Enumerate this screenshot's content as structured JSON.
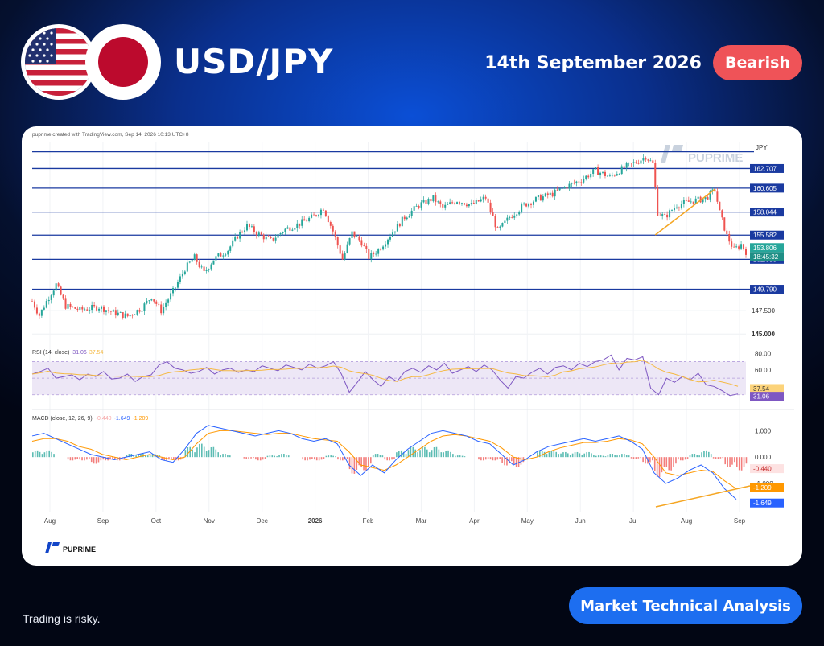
{
  "header": {
    "pair": "USD/JPY",
    "date": "14th September 2026",
    "sentiment": "Bearish",
    "flags": [
      "us-flag",
      "japan-flag"
    ]
  },
  "chart_header": "puprime created with TradingView.com, Sep 14, 2026 10:13 UTC+8",
  "watermark": "PUPRIME",
  "card_logo": "PUPRIME",
  "footer": {
    "disclaimer": "Trading is risky.",
    "cta": "Market Technical Analysis"
  },
  "colors": {
    "bearish": "#ef5358",
    "up_candle": "#26a69a",
    "down_candle": "#ef5350",
    "level_line": "#1a3aa0",
    "rsi": "#7e57c2",
    "rsi_ma": "#f5b942",
    "macd": "#2962ff",
    "signal": "#ff9800",
    "trendline": "#f5a623"
  },
  "chart_data": [
    {
      "type": "candlestick",
      "title": "USD/JPY",
      "currency": "JPY",
      "x_labels": [
        "Aug",
        "Sep",
        "Oct",
        "Nov",
        "Dec",
        "2026",
        "Feb",
        "Mar",
        "Apr",
        "May",
        "Jun",
        "Jul",
        "Aug",
        "Sep"
      ],
      "ylim": [
        144.5,
        165.5
      ],
      "y_ticks": [
        145.0,
        147.5
      ],
      "horizontal_levels": [
        164.5,
        162.707,
        160.605,
        158.044,
        155.582,
        152.99,
        149.79
      ],
      "level_labels": [
        "162.707",
        "160.605",
        "158.044",
        "155.582",
        "152.990",
        "149.790"
      ],
      "last_price": "153.806",
      "countdown": "18:45:32",
      "price_path": [
        {
          "x": 0,
          "y": 148.5
        },
        {
          "x": 3,
          "y": 147.0
        },
        {
          "x": 6,
          "y": 148.5
        },
        {
          "x": 10,
          "y": 150.3
        },
        {
          "x": 14,
          "y": 148.0
        },
        {
          "x": 20,
          "y": 147.6
        },
        {
          "x": 28,
          "y": 147.9
        },
        {
          "x": 34,
          "y": 147.3
        },
        {
          "x": 40,
          "y": 146.9
        },
        {
          "x": 46,
          "y": 147.8
        },
        {
          "x": 50,
          "y": 149.0
        },
        {
          "x": 54,
          "y": 147.5
        },
        {
          "x": 60,
          "y": 150.0
        },
        {
          "x": 64,
          "y": 152.0
        },
        {
          "x": 68,
          "y": 153.2
        },
        {
          "x": 72,
          "y": 151.5
        },
        {
          "x": 76,
          "y": 153.0
        },
        {
          "x": 82,
          "y": 154.0
        },
        {
          "x": 86,
          "y": 155.5
        },
        {
          "x": 90,
          "y": 156.6
        },
        {
          "x": 94,
          "y": 155.8
        },
        {
          "x": 100,
          "y": 155.0
        },
        {
          "x": 106,
          "y": 156.2
        },
        {
          "x": 112,
          "y": 156.8
        },
        {
          "x": 118,
          "y": 157.6
        },
        {
          "x": 122,
          "y": 158.5
        },
        {
          "x": 126,
          "y": 156.0
        },
        {
          "x": 130,
          "y": 153.0
        },
        {
          "x": 134,
          "y": 155.8
        },
        {
          "x": 138,
          "y": 154.8
        },
        {
          "x": 141,
          "y": 153.2
        },
        {
          "x": 145,
          "y": 154.0
        },
        {
          "x": 150,
          "y": 155.6
        },
        {
          "x": 156,
          "y": 157.5
        },
        {
          "x": 162,
          "y": 158.8
        },
        {
          "x": 168,
          "y": 159.5
        },
        {
          "x": 172,
          "y": 158.5
        },
        {
          "x": 178,
          "y": 159.3
        },
        {
          "x": 184,
          "y": 158.8
        },
        {
          "x": 190,
          "y": 159.6
        },
        {
          "x": 195,
          "y": 156.0
        },
        {
          "x": 200,
          "y": 157.5
        },
        {
          "x": 206,
          "y": 158.8
        },
        {
          "x": 212,
          "y": 159.5
        },
        {
          "x": 218,
          "y": 160.0
        },
        {
          "x": 224,
          "y": 160.8
        },
        {
          "x": 230,
          "y": 161.5
        },
        {
          "x": 236,
          "y": 162.5
        },
        {
          "x": 242,
          "y": 161.8
        },
        {
          "x": 248,
          "y": 162.8
        },
        {
          "x": 254,
          "y": 163.5
        },
        {
          "x": 257,
          "y": 164.0
        },
        {
          "x": 260,
          "y": 163.2
        },
        {
          "x": 262,
          "y": 158.0
        },
        {
          "x": 265,
          "y": 157.5
        },
        {
          "x": 270,
          "y": 158.8
        },
        {
          "x": 276,
          "y": 159.2
        },
        {
          "x": 282,
          "y": 159.5
        },
        {
          "x": 286,
          "y": 160.4
        },
        {
          "x": 288,
          "y": 158.0
        },
        {
          "x": 291,
          "y": 155.5
        },
        {
          "x": 294,
          "y": 154.0
        },
        {
          "x": 297,
          "y": 154.6
        },
        {
          "x": 299,
          "y": 153.8
        }
      ]
    },
    {
      "type": "line",
      "title": "RSI (14, close)",
      "legend": {
        "rsi": "31.06",
        "ma": "37.54"
      },
      "ylim": [
        20,
        90
      ],
      "y_ticks": [
        80.0,
        60.0
      ],
      "value_labels": [
        "37.54",
        "31.06"
      ],
      "band": [
        30,
        70
      ],
      "series": [
        {
          "name": "RSI",
          "values": [
            55,
            58,
            62,
            50,
            52,
            54,
            48,
            55,
            52,
            58,
            49,
            50,
            55,
            46,
            52,
            54,
            66,
            70,
            62,
            60,
            56,
            58,
            63,
            55,
            60,
            62,
            57,
            60,
            58,
            65,
            62,
            59,
            66,
            63,
            60,
            67,
            62,
            65,
            70,
            55,
            33,
            45,
            58,
            48,
            40,
            52,
            46,
            58,
            62,
            57,
            65,
            60,
            68,
            56,
            60,
            64,
            58,
            66,
            60,
            48,
            38,
            52,
            50,
            57,
            62,
            55,
            63,
            65,
            60,
            68,
            64,
            70,
            72,
            78,
            60,
            74,
            72,
            76,
            38,
            30,
            50,
            45,
            52,
            48,
            56,
            42,
            40,
            35,
            29,
            31
          ]
        }
      ]
    },
    {
      "type": "line",
      "title": "MACD (close, 12, 26, 9)",
      "legend": {
        "hist": "-0.440",
        "macd": "-1.649",
        "signal": "-1.209"
      },
      "ylim": [
        -2.1,
        1.5
      ],
      "y_ticks": [
        1.0,
        0.0,
        -1.0
      ],
      "value_labels": [
        "-0.440",
        "-1.209",
        "-1.649"
      ],
      "series": [
        {
          "name": "MACD",
          "values": [
            0.8,
            0.9,
            0.7,
            0.5,
            0.3,
            0.1,
            0.0,
            -0.1,
            0.0,
            0.1,
            0.2,
            -0.1,
            -0.2,
            0.3,
            0.9,
            1.2,
            1.1,
            1.0,
            0.9,
            0.8,
            0.9,
            1.0,
            0.9,
            0.7,
            0.6,
            0.7,
            0.5,
            -0.3,
            -0.7,
            -0.3,
            -0.6,
            -0.1,
            0.3,
            0.6,
            0.9,
            1.0,
            0.9,
            0.8,
            0.6,
            0.5,
            0.1,
            -0.3,
            -0.1,
            0.2,
            0.4,
            0.5,
            0.6,
            0.7,
            0.6,
            0.7,
            0.8,
            0.6,
            0.3,
            -0.6,
            -1.0,
            -0.8,
            -0.5,
            -0.3,
            -0.6,
            -1.2,
            -1.6
          ]
        },
        {
          "name": "Signal",
          "values": [
            0.6,
            0.7,
            0.7,
            0.6,
            0.4,
            0.3,
            0.1,
            0.0,
            -0.1,
            0.0,
            0.1,
            0.0,
            -0.1,
            0.0,
            0.5,
            0.9,
            1.0,
            1.0,
            0.95,
            0.9,
            0.85,
            0.9,
            0.9,
            0.8,
            0.7,
            0.65,
            0.6,
            0.2,
            -0.3,
            -0.4,
            -0.5,
            -0.3,
            0.0,
            0.3,
            0.6,
            0.8,
            0.85,
            0.8,
            0.7,
            0.6,
            0.35,
            0.0,
            -0.1,
            0.0,
            0.2,
            0.35,
            0.45,
            0.55,
            0.55,
            0.6,
            0.7,
            0.65,
            0.5,
            0.0,
            -0.6,
            -0.7,
            -0.6,
            -0.5,
            -0.55,
            -0.9,
            -1.2
          ]
        }
      ]
    }
  ]
}
